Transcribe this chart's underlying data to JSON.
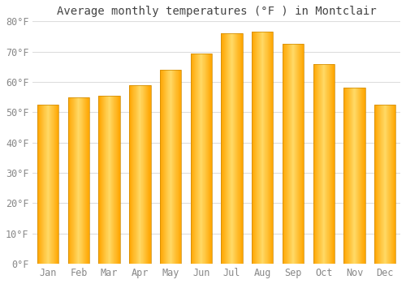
{
  "title": "Average monthly temperatures (°F ) in Montclair",
  "months": [
    "Jan",
    "Feb",
    "Mar",
    "Apr",
    "May",
    "Jun",
    "Jul",
    "Aug",
    "Sep",
    "Oct",
    "Nov",
    "Dec"
  ],
  "values": [
    52.5,
    55.0,
    55.5,
    59.0,
    64.0,
    69.5,
    76.0,
    76.5,
    72.5,
    66.0,
    58.0,
    52.5
  ],
  "bar_color_center": "#FFD966",
  "bar_color_edge": "#FFA500",
  "bar_border_color": "#CC8800",
  "ylim": [
    0,
    80
  ],
  "yticks": [
    0,
    10,
    20,
    30,
    40,
    50,
    60,
    70,
    80
  ],
  "background_color": "#FFFFFF",
  "grid_color": "#DDDDDD",
  "title_fontsize": 10,
  "tick_fontsize": 8.5,
  "tick_color": "#888888"
}
